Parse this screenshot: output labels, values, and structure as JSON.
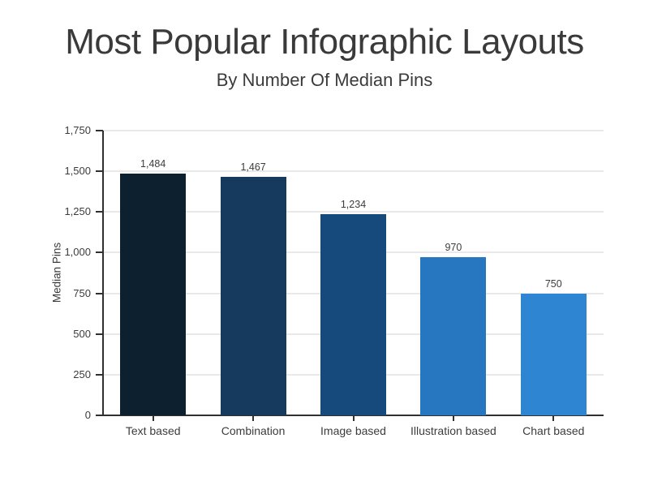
{
  "header": {
    "title": "Most Popular Infographic Layouts",
    "subtitle": "By Number Of Median Pins"
  },
  "chart_data": {
    "type": "bar",
    "title": "Most Popular Infographic Layouts",
    "subtitle": "By Number Of Median Pins",
    "categories": [
      "Text based",
      "Combination",
      "Image based",
      "Illustration based",
      "Chart based"
    ],
    "values": [
      1484,
      1467,
      1234,
      970,
      750
    ],
    "value_labels": [
      "1,484",
      "1,467",
      "1,234",
      "970",
      "750"
    ],
    "bar_colors": [
      "#0d2030",
      "#163a5e",
      "#174a7c",
      "#2776c0",
      "#2e86d2"
    ],
    "xlabel": "",
    "ylabel": "Median Pins",
    "ylim": [
      0,
      1750
    ],
    "ytick_interval": 250,
    "ytick_labels": [
      "0",
      "250",
      "500",
      "750",
      "1,000",
      "1,250",
      "1,500",
      "1,750"
    ],
    "grid": true,
    "legend": false
  },
  "colors": {
    "axis": "#303030",
    "grid": "#e9e9e9",
    "text": "#3c3c3c",
    "title_text": "#3a3a3a",
    "background": "#ffffff"
  }
}
